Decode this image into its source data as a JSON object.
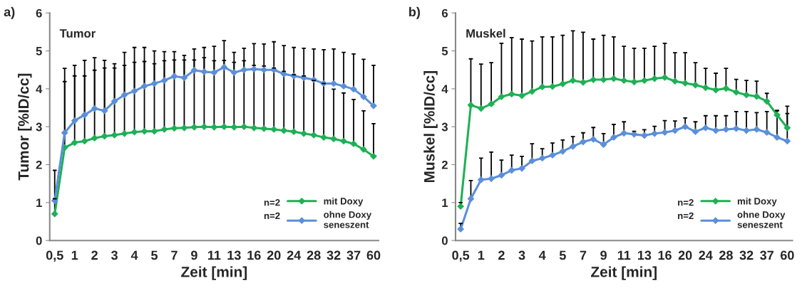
{
  "chart_data": [
    {
      "type": "line",
      "title": "Tumor",
      "annotations": [
        "a)",
        "n=2",
        "n=2"
      ],
      "xlabel": "Zeit [min]",
      "ylabel": "Tumor [%ID/cc]",
      "categories": [
        "0,5",
        null,
        "1",
        null,
        "2",
        null,
        "3",
        null,
        "4",
        null,
        "5",
        null,
        "7",
        null,
        "9",
        null,
        "11",
        null,
        "13",
        null,
        "16",
        null,
        "20",
        null,
        "24",
        null,
        "28",
        null,
        "32",
        null,
        "37",
        null,
        "60"
      ],
      "ylim": [
        0,
        6
      ],
      "yticks": [
        0,
        1,
        2,
        3,
        4,
        5,
        6
      ],
      "grid": false,
      "legend": "bottom right",
      "marker": "diamond",
      "line_style": "solid",
      "series": [
        {
          "name": "mit Doxy",
          "color": "#1eb055",
          "values": [
            0.7,
            2.45,
            2.58,
            2.62,
            2.7,
            2.75,
            2.78,
            2.82,
            2.86,
            2.88,
            2.88,
            2.93,
            2.96,
            2.97,
            2.99,
            3.0,
            2.99,
            3.0,
            2.99,
            3.0,
            2.97,
            2.95,
            2.93,
            2.9,
            2.87,
            2.82,
            2.78,
            2.72,
            2.68,
            2.62,
            2.55,
            2.4,
            2.22
          ],
          "errors": [
            [
              0.7,
              1.1
            ],
            [
              2.45,
              4.19
            ],
            [
              2.58,
              4.34
            ],
            [
              2.62,
              4.34
            ],
            [
              2.7,
              4.49
            ],
            [
              2.75,
              4.55
            ],
            [
              2.78,
              4.55
            ],
            [
              2.82,
              4.62
            ],
            [
              2.86,
              4.7
            ],
            [
              2.88,
              4.72
            ],
            [
              2.88,
              4.66
            ],
            [
              2.93,
              4.74
            ],
            [
              2.96,
              4.76
            ],
            [
              2.97,
              4.76
            ],
            [
              2.99,
              4.76
            ],
            [
              3.0,
              4.82
            ],
            [
              2.99,
              4.74
            ],
            [
              3.0,
              4.75
            ],
            [
              2.99,
              4.7
            ],
            [
              3.0,
              4.74
            ],
            [
              2.97,
              4.62
            ],
            [
              2.95,
              4.6
            ],
            [
              2.93,
              4.55
            ],
            [
              2.9,
              4.46
            ],
            [
              2.87,
              4.37
            ],
            [
              2.82,
              4.34
            ],
            [
              2.78,
              4.22
            ],
            [
              2.72,
              4.14
            ],
            [
              2.68,
              3.99
            ],
            [
              2.62,
              3.89
            ],
            [
              2.55,
              3.72
            ],
            [
              2.4,
              3.42
            ],
            [
              2.22,
              3.08
            ]
          ]
        },
        {
          "name": "ohne Doxy\nseneszent",
          "color": "#5b8fd9",
          "values": [
            1.05,
            2.84,
            3.16,
            3.31,
            3.48,
            3.42,
            3.67,
            3.84,
            3.94,
            4.07,
            4.14,
            4.22,
            4.33,
            4.29,
            4.49,
            4.45,
            4.43,
            4.57,
            4.43,
            4.5,
            4.52,
            4.5,
            4.5,
            4.39,
            4.34,
            4.29,
            4.24,
            4.14,
            4.14,
            4.07,
            3.99,
            3.79,
            3.55
          ],
          "errors": [
            [
              1.05,
              1.85
            ],
            [
              2.84,
              4.54
            ],
            [
              3.16,
              4.62
            ],
            [
              3.31,
              4.75
            ],
            [
              3.48,
              4.82
            ],
            [
              3.42,
              4.75
            ],
            [
              3.67,
              4.66
            ],
            [
              3.84,
              4.96
            ],
            [
              3.94,
              5.09
            ],
            [
              4.07,
              5.09
            ],
            [
              4.14,
              5.0
            ],
            [
              4.22,
              4.98
            ],
            [
              4.33,
              4.98
            ],
            [
              4.29,
              4.88
            ],
            [
              4.49,
              5.05
            ],
            [
              4.45,
              5.09
            ],
            [
              4.43,
              5.12
            ],
            [
              4.57,
              5.27
            ],
            [
              4.43,
              4.96
            ],
            [
              4.5,
              5.07
            ],
            [
              4.52,
              5.19
            ],
            [
              4.5,
              5.18
            ],
            [
              4.5,
              5.24
            ],
            [
              4.39,
              5.14
            ],
            [
              4.34,
              5.09
            ],
            [
              4.29,
              5.07
            ],
            [
              4.24,
              5.05
            ],
            [
              4.14,
              5.03
            ],
            [
              4.14,
              5.05
            ],
            [
              4.07,
              4.96
            ],
            [
              3.99,
              4.92
            ],
            [
              3.79,
              4.78
            ],
            [
              3.55,
              4.62
            ]
          ]
        }
      ]
    },
    {
      "type": "line",
      "title": "Muskel",
      "annotations": [
        "b)",
        "n=2",
        "n=2"
      ],
      "xlabel": "Zeit [min]",
      "ylabel": "Muskel [%ID/cc]",
      "categories": [
        "0,5",
        null,
        "1",
        null,
        "2",
        null,
        "3",
        null,
        "4",
        null,
        "5",
        null,
        "7",
        null,
        "9",
        null,
        "11",
        null,
        "13",
        null,
        "16",
        null,
        "20",
        null,
        "24",
        null,
        "28",
        null,
        "32",
        null,
        "37",
        null,
        "60"
      ],
      "ylim": [
        0,
        6
      ],
      "yticks": [
        0,
        1,
        2,
        3,
        4,
        5,
        6
      ],
      "grid": false,
      "legend": "bottom right",
      "marker": "diamond",
      "line_style": "solid",
      "series": [
        {
          "name": "mit Doxy",
          "color": "#1eb055",
          "values": [
            0.9,
            3.57,
            3.48,
            3.6,
            3.79,
            3.86,
            3.82,
            3.93,
            4.05,
            4.06,
            4.13,
            4.22,
            4.17,
            4.24,
            4.24,
            4.27,
            4.22,
            4.18,
            4.22,
            4.27,
            4.3,
            4.2,
            4.15,
            4.1,
            4.03,
            3.97,
            4.01,
            3.91,
            3.84,
            3.8,
            3.67,
            3.31,
            2.97
          ],
          "errors": [
            [
              0.9,
              1.0
            ],
            [
              3.57,
              4.79
            ],
            [
              3.48,
              4.65
            ],
            [
              3.6,
              4.69
            ],
            [
              3.79,
              5.2
            ],
            [
              3.86,
              5.35
            ],
            [
              3.82,
              5.31
            ],
            [
              3.93,
              5.26
            ],
            [
              4.05,
              5.37
            ],
            [
              4.06,
              5.37
            ],
            [
              4.13,
              5.41
            ],
            [
              4.22,
              5.53
            ],
            [
              4.17,
              5.49
            ],
            [
              4.24,
              5.31
            ],
            [
              4.24,
              5.41
            ],
            [
              4.27,
              5.37
            ],
            [
              4.22,
              5.12
            ],
            [
              4.18,
              5.07
            ],
            [
              4.22,
              5.07
            ],
            [
              4.27,
              5.12
            ],
            [
              4.3,
              5.2
            ],
            [
              4.2,
              4.95
            ],
            [
              4.15,
              4.95
            ],
            [
              4.1,
              4.69
            ],
            [
              4.03,
              4.54
            ],
            [
              3.97,
              4.41
            ],
            [
              4.01,
              4.54
            ],
            [
              3.91,
              4.25
            ],
            [
              3.84,
              4.22
            ],
            [
              3.8,
              4.2
            ],
            [
              3.67,
              3.88
            ],
            [
              3.31,
              3.42
            ],
            [
              2.97,
              3.54
            ]
          ]
        },
        {
          "name": "ohne Doxy\nseneszent",
          "color": "#5b8fd9",
          "values": [
            0.3,
            1.1,
            1.6,
            1.63,
            1.72,
            1.85,
            1.9,
            2.1,
            2.17,
            2.25,
            2.35,
            2.48,
            2.6,
            2.67,
            2.53,
            2.72,
            2.83,
            2.8,
            2.77,
            2.82,
            2.85,
            2.9,
            3.0,
            2.87,
            2.97,
            2.9,
            2.93,
            2.95,
            2.9,
            2.93,
            2.85,
            2.72,
            2.62
          ],
          "errors": [
            [
              0.3,
              0.45
            ],
            [
              1.1,
              1.58
            ],
            [
              1.6,
              2.17
            ],
            [
              1.63,
              2.33
            ],
            [
              1.72,
              2.12
            ],
            [
              1.85,
              2.25
            ],
            [
              1.9,
              2.22
            ],
            [
              2.1,
              2.55
            ],
            [
              2.17,
              2.42
            ],
            [
              2.25,
              2.57
            ],
            [
              2.35,
              2.65
            ],
            [
              2.48,
              2.74
            ],
            [
              2.6,
              2.84
            ],
            [
              2.67,
              2.98
            ],
            [
              2.53,
              2.82
            ],
            [
              2.72,
              3.06
            ],
            [
              2.83,
              3.13
            ],
            [
              2.8,
              2.88
            ],
            [
              2.77,
              2.92
            ],
            [
              2.82,
              3.01
            ],
            [
              2.85,
              3.16
            ],
            [
              2.9,
              3.15
            ],
            [
              3.0,
              3.23
            ],
            [
              2.87,
              3.13
            ],
            [
              2.97,
              3.29
            ],
            [
              2.9,
              3.29
            ],
            [
              2.93,
              3.29
            ],
            [
              2.95,
              3.4
            ],
            [
              2.9,
              3.4
            ],
            [
              2.93,
              3.37
            ],
            [
              2.85,
              3.4
            ],
            [
              2.72,
              3.43
            ],
            [
              2.62,
              3.35
            ]
          ]
        }
      ]
    }
  ]
}
